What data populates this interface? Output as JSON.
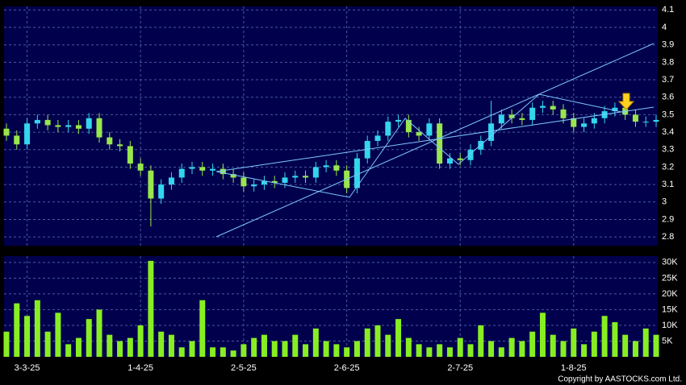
{
  "chart_data": {
    "type": "candlestick",
    "categories": [
      null,
      null,
      "3-3-25",
      null,
      null,
      null,
      null,
      null,
      null,
      null,
      null,
      null,
      null,
      "1-4-25",
      null,
      null,
      null,
      null,
      null,
      null,
      null,
      null,
      null,
      "2-5-25",
      null,
      null,
      null,
      null,
      null,
      null,
      null,
      null,
      null,
      "2-6-25",
      null,
      null,
      null,
      null,
      null,
      null,
      null,
      null,
      null,
      null,
      "2-7-25",
      null,
      null,
      null,
      null,
      null,
      null,
      null,
      null,
      null,
      null,
      "1-8-25",
      null,
      null,
      null,
      null,
      null,
      null,
      null,
      null
    ],
    "open": [
      3.42,
      3.38,
      3.33,
      3.45,
      3.47,
      3.44,
      3.43,
      3.44,
      3.42,
      3.48,
      3.37,
      3.33,
      3.32,
      3.22,
      3.18,
      3.02,
      3.1,
      3.14,
      3.19,
      3.2,
      3.18,
      3.19,
      3.16,
      3.14,
      3.09,
      3.1,
      3.12,
      3.11,
      3.14,
      3.15,
      3.14,
      3.2,
      3.21,
      3.18,
      3.08,
      3.25,
      3.35,
      3.38,
      3.46,
      3.47,
      3.4,
      3.38,
      3.45,
      3.22,
      3.25,
      3.24,
      3.3,
      3.35,
      3.45,
      3.5,
      3.48,
      3.47,
      3.54,
      3.55,
      3.53,
      3.48,
      3.43,
      3.45,
      3.48,
      3.52,
      3.54,
      3.5,
      3.46,
      3.46
    ],
    "high": [
      3.45,
      3.41,
      3.48,
      3.5,
      3.5,
      3.47,
      3.47,
      3.47,
      3.51,
      3.51,
      3.4,
      3.36,
      3.35,
      3.25,
      3.21,
      3.13,
      3.17,
      3.22,
      3.23,
      3.23,
      3.22,
      3.22,
      3.19,
      3.17,
      3.13,
      3.15,
      3.15,
      3.17,
      3.18,
      3.18,
      3.23,
      3.24,
      3.24,
      3.21,
      3.28,
      3.38,
      3.41,
      3.49,
      3.5,
      3.5,
      3.43,
      3.48,
      3.48,
      3.28,
      3.28,
      3.33,
      3.38,
      3.58,
      3.53,
      3.53,
      3.51,
      3.57,
      3.58,
      3.58,
      3.56,
      3.51,
      3.48,
      3.51,
      3.55,
      3.57,
      3.57,
      3.53,
      3.49,
      3.5
    ],
    "low": [
      3.35,
      3.3,
      3.3,
      3.42,
      3.41,
      3.4,
      3.4,
      3.39,
      3.39,
      3.34,
      3.3,
      3.29,
      3.19,
      3.15,
      2.86,
      2.99,
      3.07,
      3.11,
      3.16,
      3.15,
      3.15,
      3.13,
      3.11,
      3.06,
      3.06,
      3.07,
      3.08,
      3.08,
      3.11,
      3.11,
      3.11,
      3.17,
      3.15,
      3.05,
      3.05,
      3.22,
      3.32,
      3.35,
      3.43,
      3.37,
      3.35,
      3.35,
      3.19,
      3.19,
      3.21,
      3.21,
      3.27,
      3.32,
      3.42,
      3.45,
      3.44,
      3.44,
      3.51,
      3.5,
      3.45,
      3.4,
      3.4,
      3.42,
      3.45,
      3.49,
      3.47,
      3.43,
      3.43,
      3.43
    ],
    "close": [
      3.38,
      3.33,
      3.45,
      3.47,
      3.44,
      3.43,
      3.44,
      3.42,
      3.48,
      3.37,
      3.33,
      3.32,
      3.22,
      3.18,
      3.02,
      3.1,
      3.14,
      3.19,
      3.2,
      3.18,
      3.19,
      3.16,
      3.14,
      3.09,
      3.1,
      3.12,
      3.11,
      3.14,
      3.15,
      3.14,
      3.2,
      3.21,
      3.18,
      3.08,
      3.25,
      3.35,
      3.38,
      3.46,
      3.47,
      3.4,
      3.38,
      3.45,
      3.22,
      3.25,
      3.24,
      3.3,
      3.35,
      3.45,
      3.5,
      3.48,
      3.47,
      3.54,
      3.55,
      3.53,
      3.48,
      3.43,
      3.45,
      3.48,
      3.52,
      3.54,
      3.5,
      3.46,
      3.46,
      3.47
    ],
    "volume": [
      8000,
      17000,
      13000,
      18000,
      8000,
      14000,
      4000,
      6000,
      12000,
      15000,
      7000,
      5000,
      6000,
      10000,
      30500,
      8000,
      7000,
      3000,
      5000,
      18000,
      3000,
      3000,
      2000,
      4000,
      6000,
      7000,
      5000,
      5000,
      7000,
      4000,
      9000,
      5000,
      4000,
      3000,
      5000,
      9000,
      10000,
      7000,
      12000,
      6000,
      4000,
      3000,
      4000,
      3000,
      6000,
      4000,
      10000,
      5000,
      3000,
      6000,
      5000,
      8000,
      14000,
      7000,
      5000,
      9000,
      4000,
      8000,
      13000,
      11000,
      7000,
      5000,
      9000,
      7000
    ],
    "up_color": "#33d6ee",
    "down_color": "#99e64d",
    "volume_color": "#88ee22",
    "ylim": [
      2.75,
      4.12
    ],
    "yticks": [
      2.8,
      2.9,
      3,
      3.1,
      3.2,
      3.3,
      3.4,
      3.5,
      3.6,
      3.7,
      3.8,
      3.9,
      4,
      4.1
    ],
    "y2lim": [
      0,
      32000
    ],
    "y2ticks": [
      {
        "value": 5000,
        "label": "5K"
      },
      {
        "value": 10000,
        "label": "10K"
      },
      {
        "value": 15000,
        "label": "15K"
      },
      {
        "value": 20000,
        "label": "20K"
      },
      {
        "value": 25000,
        "label": "25K"
      },
      {
        "value": 30000,
        "label": "30K"
      }
    ],
    "grid": true,
    "copyright": "Copyright by AASTOCKS.com Ltd."
  }
}
